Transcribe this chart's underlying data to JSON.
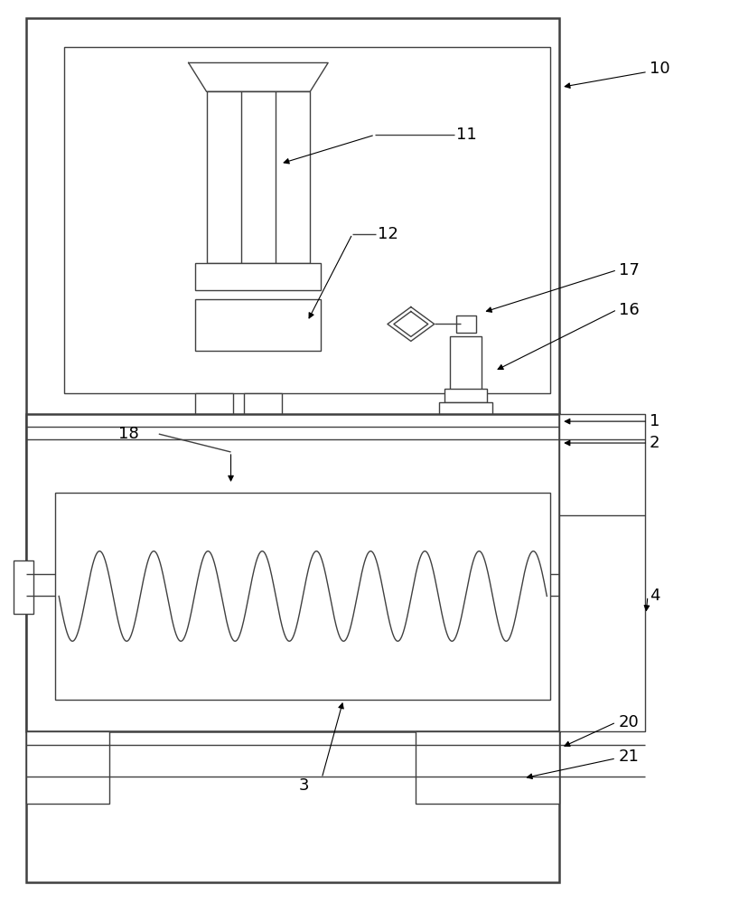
{
  "bg_color": "#ffffff",
  "line_color": "#404040",
  "lw": 1.0,
  "tlw": 1.8,
  "fs": 13
}
